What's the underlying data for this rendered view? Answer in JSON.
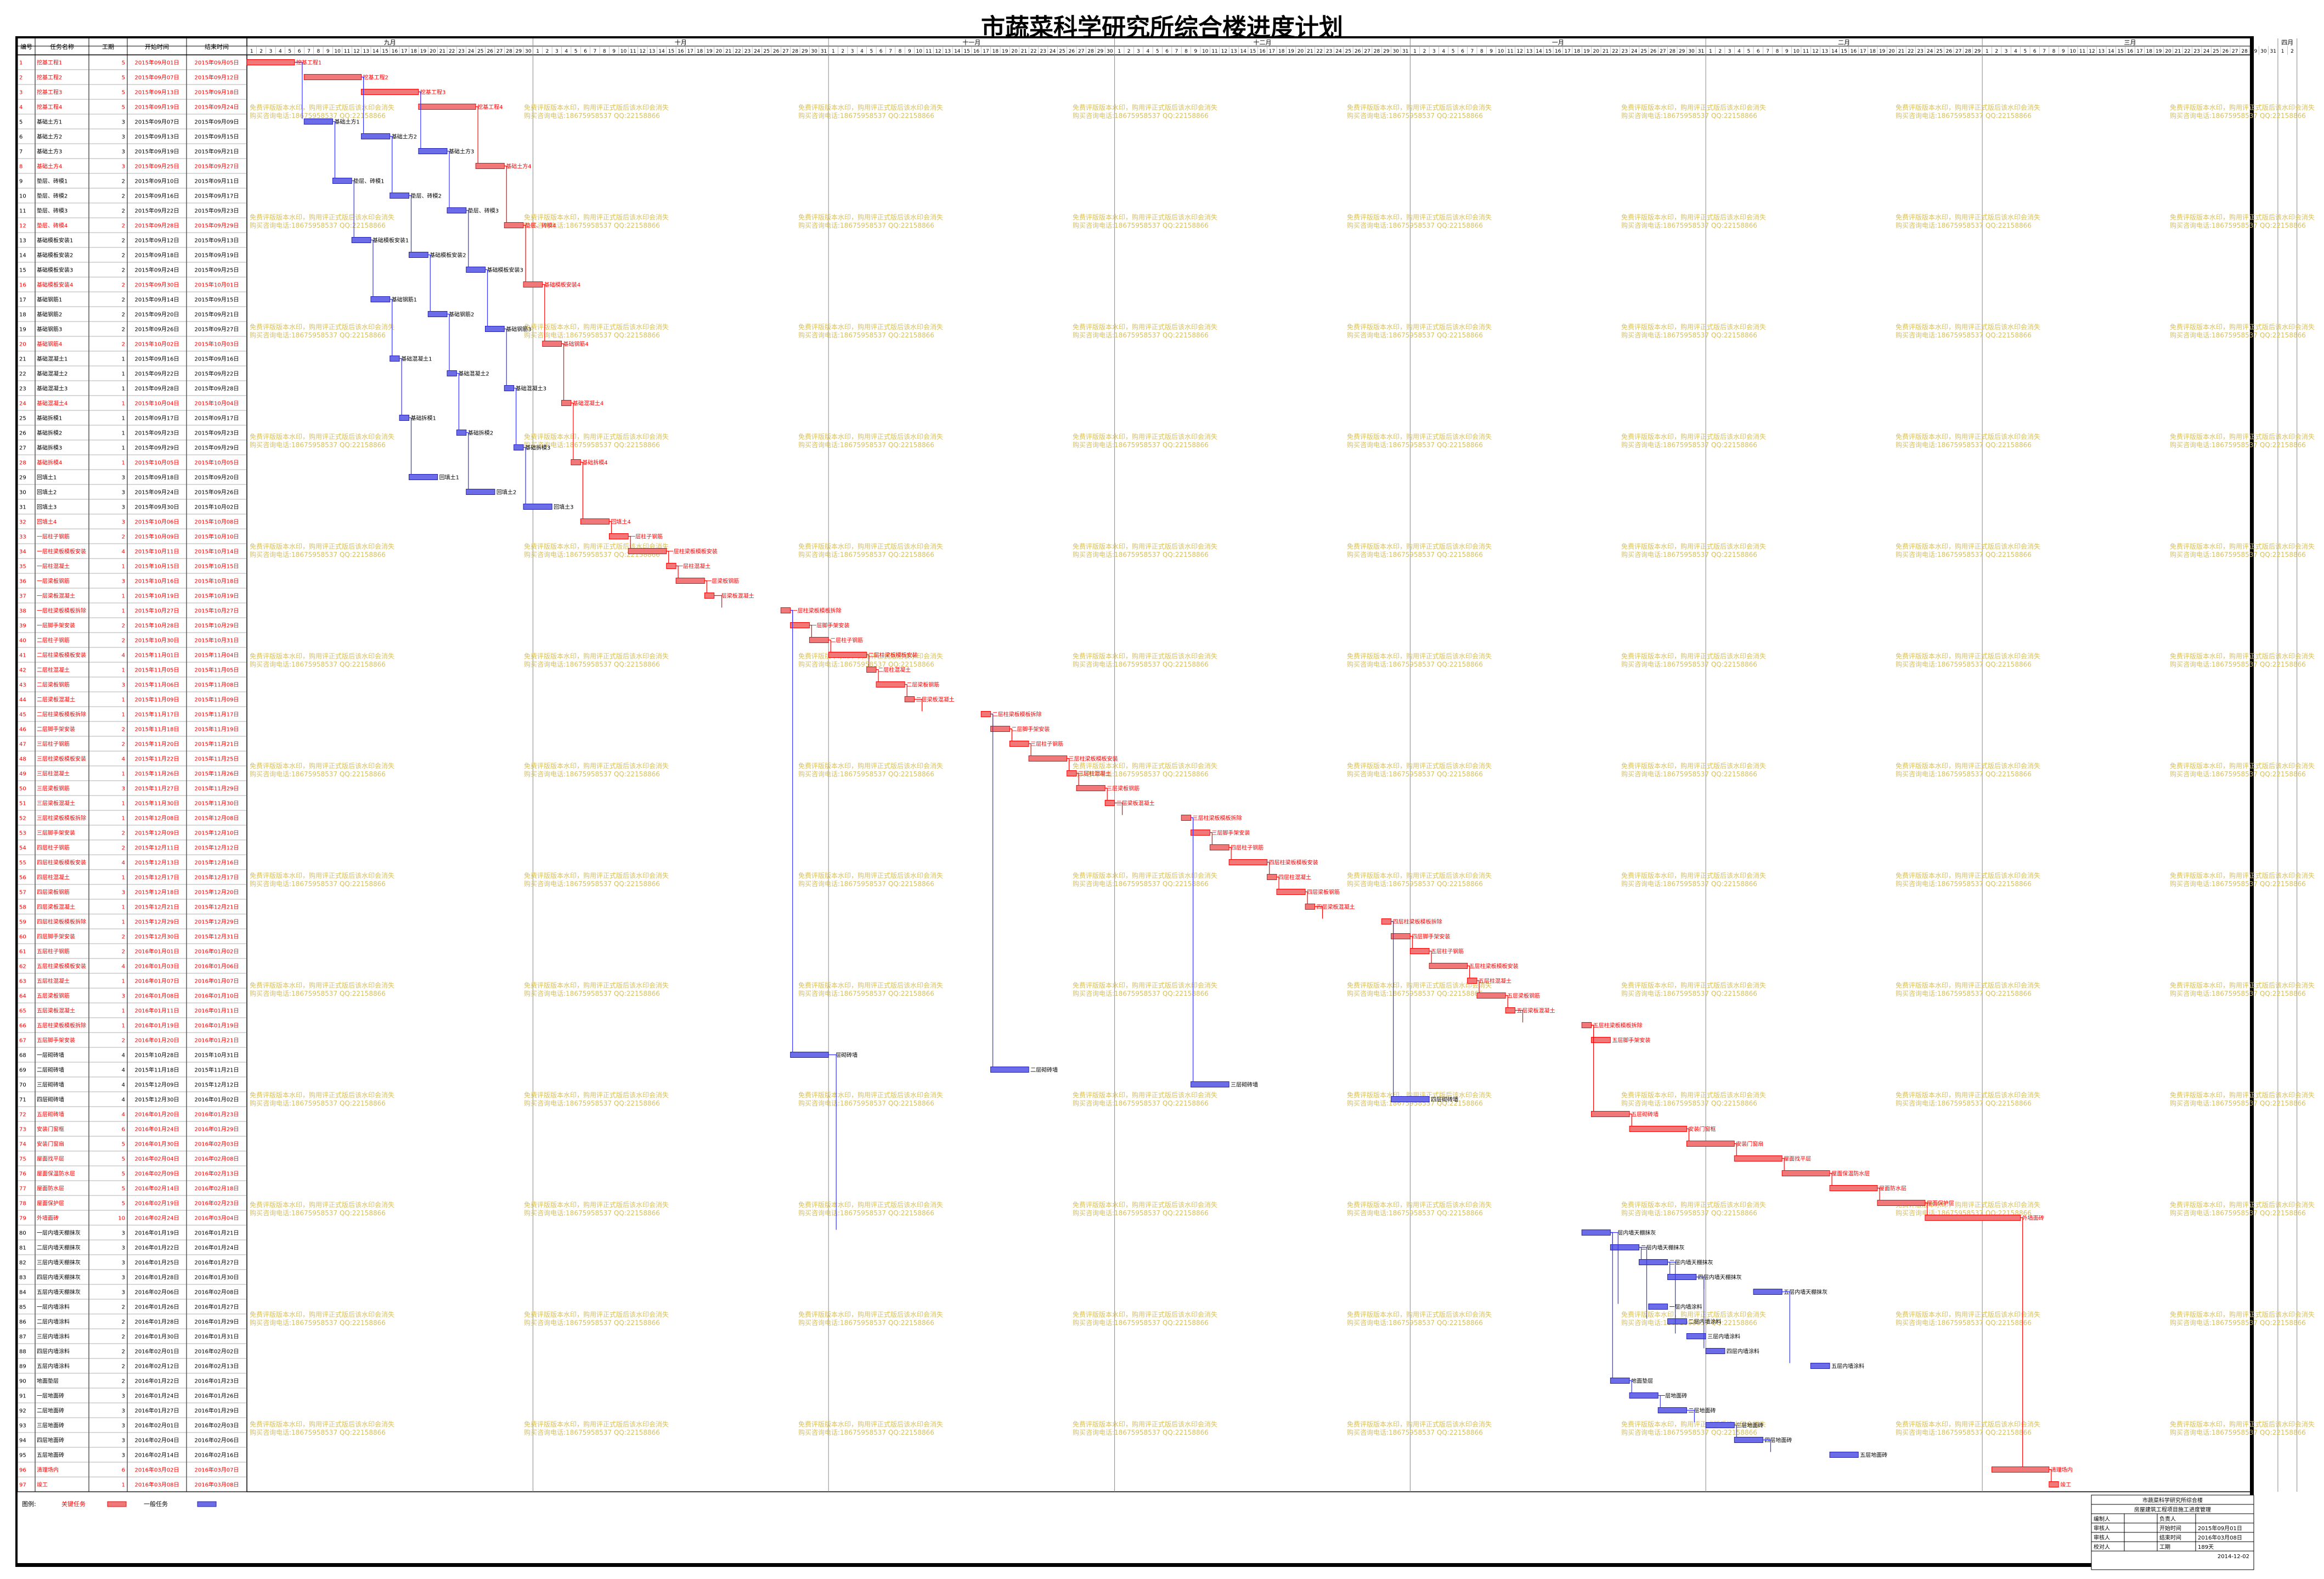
{
  "title": "市蔬菜科学研究所综合楼进度计划",
  "columns": {
    "id": "编号",
    "name": "任务名称",
    "duration": "工期",
    "start": "开始时间",
    "end": "结束时间"
  },
  "colors": {
    "critical": "#ff0000",
    "critical_bar": "#f07878",
    "normal": "#000000",
    "normal_bar": "#6c6ce8",
    "link": "#3030ff",
    "watermark": "#d8c060",
    "grid": "#888888"
  },
  "months": [
    {
      "label": "九月",
      "days": 30
    },
    {
      "label": "十月",
      "days": 31
    },
    {
      "label": "十一月",
      "days": 30
    },
    {
      "label": "十二月",
      "days": 31
    },
    {
      "label": "一月",
      "days": 31
    },
    {
      "label": "二月",
      "days": 29
    },
    {
      "label": "三月",
      "days": 31
    },
    {
      "label": "四月",
      "days": 2
    }
  ],
  "watermark": {
    "line1": "免费评版版本水印，购用评正式版后该水印会消失",
    "line2": "购买咨询电话:18675958537 QQ:22158866"
  },
  "tasks": [
    {
      "id": "1",
      "name": "挖基工程1",
      "dur": "5",
      "start": "2015年09月01日",
      "end": "2015年09月05日",
      "c": true,
      "s": 0,
      "d": 5
    },
    {
      "id": "2",
      "name": "挖基工程2",
      "dur": "5",
      "start": "2015年09月07日",
      "end": "2015年09月12日",
      "c": true,
      "s": 6,
      "d": 6
    },
    {
      "id": "3",
      "name": "挖基工程3",
      "dur": "5",
      "start": "2015年09月13日",
      "end": "2015年09月18日",
      "c": true,
      "s": 12,
      "d": 6
    },
    {
      "id": "4",
      "name": "挖基工程4",
      "dur": "5",
      "start": "2015年09月19日",
      "end": "2015年09月24日",
      "c": true,
      "s": 18,
      "d": 6
    },
    {
      "id": "5",
      "name": "基础土方1",
      "dur": "3",
      "start": "2015年09月07日",
      "end": "2015年09月09日",
      "c": false,
      "s": 6,
      "d": 3
    },
    {
      "id": "6",
      "name": "基础土方2",
      "dur": "3",
      "start": "2015年09月13日",
      "end": "2015年09月15日",
      "c": false,
      "s": 12,
      "d": 3
    },
    {
      "id": "7",
      "name": "基础土方3",
      "dur": "3",
      "start": "2015年09月19日",
      "end": "2015年09月21日",
      "c": false,
      "s": 18,
      "d": 3
    },
    {
      "id": "8",
      "name": "基础土方4",
      "dur": "3",
      "start": "2015年09月25日",
      "end": "2015年09月27日",
      "c": true,
      "s": 24,
      "d": 3
    },
    {
      "id": "9",
      "name": "垫层、砖模1",
      "dur": "2",
      "start": "2015年09月10日",
      "end": "2015年09月11日",
      "c": false,
      "s": 9,
      "d": 2
    },
    {
      "id": "10",
      "name": "垫层、砖模2",
      "dur": "2",
      "start": "2015年09月16日",
      "end": "2015年09月17日",
      "c": false,
      "s": 15,
      "d": 2
    },
    {
      "id": "11",
      "name": "垫层、砖模3",
      "dur": "2",
      "start": "2015年09月22日",
      "end": "2015年09月23日",
      "c": false,
      "s": 21,
      "d": 2
    },
    {
      "id": "12",
      "name": "垫层、砖模4",
      "dur": "2",
      "start": "2015年09月28日",
      "end": "2015年09月29日",
      "c": true,
      "s": 27,
      "d": 2
    },
    {
      "id": "13",
      "name": "基础模板安装1",
      "dur": "2",
      "start": "2015年09月12日",
      "end": "2015年09月13日",
      "c": false,
      "s": 11,
      "d": 2
    },
    {
      "id": "14",
      "name": "基础模板安装2",
      "dur": "2",
      "start": "2015年09月18日",
      "end": "2015年09月19日",
      "c": false,
      "s": 17,
      "d": 2
    },
    {
      "id": "15",
      "name": "基础模板安装3",
      "dur": "2",
      "start": "2015年09月24日",
      "end": "2015年09月25日",
      "c": false,
      "s": 23,
      "d": 2
    },
    {
      "id": "16",
      "name": "基础模板安装4",
      "dur": "2",
      "start": "2015年09月30日",
      "end": "2015年10月01日",
      "c": true,
      "s": 29,
      "d": 2
    },
    {
      "id": "17",
      "name": "基础钢筋1",
      "dur": "2",
      "start": "2015年09月14日",
      "end": "2015年09月15日",
      "c": false,
      "s": 13,
      "d": 2
    },
    {
      "id": "18",
      "name": "基础钢筋2",
      "dur": "2",
      "start": "2015年09月20日",
      "end": "2015年09月21日",
      "c": false,
      "s": 19,
      "d": 2
    },
    {
      "id": "19",
      "name": "基础钢筋3",
      "dur": "2",
      "start": "2015年09月26日",
      "end": "2015年09月27日",
      "c": false,
      "s": 25,
      "d": 2
    },
    {
      "id": "20",
      "name": "基础钢筋4",
      "dur": "2",
      "start": "2015年10月02日",
      "end": "2015年10月03日",
      "c": true,
      "s": 31,
      "d": 2
    },
    {
      "id": "21",
      "name": "基础混凝土1",
      "dur": "1",
      "start": "2015年09月16日",
      "end": "2015年09月16日",
      "c": false,
      "s": 15,
      "d": 1
    },
    {
      "id": "22",
      "name": "基础混凝土2",
      "dur": "1",
      "start": "2015年09月22日",
      "end": "2015年09月22日",
      "c": false,
      "s": 21,
      "d": 1
    },
    {
      "id": "23",
      "name": "基础混凝土3",
      "dur": "1",
      "start": "2015年09月28日",
      "end": "2015年09月28日",
      "c": false,
      "s": 27,
      "d": 1
    },
    {
      "id": "24",
      "name": "基础混凝土4",
      "dur": "1",
      "start": "2015年10月04日",
      "end": "2015年10月04日",
      "c": true,
      "s": 33,
      "d": 1
    },
    {
      "id": "25",
      "name": "基础拆模1",
      "dur": "1",
      "start": "2015年09月17日",
      "end": "2015年09月17日",
      "c": false,
      "s": 16,
      "d": 1
    },
    {
      "id": "26",
      "name": "基础拆模2",
      "dur": "1",
      "start": "2015年09月23日",
      "end": "2015年09月23日",
      "c": false,
      "s": 22,
      "d": 1
    },
    {
      "id": "27",
      "name": "基础拆模3",
      "dur": "1",
      "start": "2015年09月29日",
      "end": "2015年09月29日",
      "c": false,
      "s": 28,
      "d": 1
    },
    {
      "id": "28",
      "name": "基础拆模4",
      "dur": "1",
      "start": "2015年10月05日",
      "end": "2015年10月05日",
      "c": true,
      "s": 34,
      "d": 1
    },
    {
      "id": "29",
      "name": "回填土1",
      "dur": "3",
      "start": "2015年09月18日",
      "end": "2015年09月20日",
      "c": false,
      "s": 17,
      "d": 3
    },
    {
      "id": "30",
      "name": "回填土2",
      "dur": "3",
      "start": "2015年09月24日",
      "end": "2015年09月26日",
      "c": false,
      "s": 23,
      "d": 3
    },
    {
      "id": "31",
      "name": "回填土3",
      "dur": "3",
      "start": "2015年09月30日",
      "end": "2015年10月02日",
      "c": false,
      "s": 29,
      "d": 3
    },
    {
      "id": "32",
      "name": "回填土4",
      "dur": "3",
      "start": "2015年10月06日",
      "end": "2015年10月08日",
      "c": true,
      "s": 35,
      "d": 3
    },
    {
      "id": "33",
      "name": "一层柱子钢筋",
      "dur": "2",
      "start": "2015年10月09日",
      "end": "2015年10月10日",
      "c": true,
      "s": 38,
      "d": 2
    },
    {
      "id": "34",
      "name": "一层柱梁板模板安装",
      "dur": "4",
      "start": "2015年10月11日",
      "end": "2015年10月14日",
      "c": true,
      "s": 40,
      "d": 4
    },
    {
      "id": "35",
      "name": "一层柱混凝土",
      "dur": "1",
      "start": "2015年10月15日",
      "end": "2015年10月15日",
      "c": true,
      "s": 44,
      "d": 1
    },
    {
      "id": "36",
      "name": "一层梁板钢筋",
      "dur": "3",
      "start": "2015年10月16日",
      "end": "2015年10月18日",
      "c": true,
      "s": 45,
      "d": 3
    },
    {
      "id": "37",
      "name": "一层梁板混凝土",
      "dur": "1",
      "start": "2015年10月19日",
      "end": "2015年10月19日",
      "c": true,
      "s": 48,
      "d": 1
    },
    {
      "id": "38",
      "name": "一层柱梁板模板拆除",
      "dur": "1",
      "start": "2015年10月27日",
      "end": "2015年10月27日",
      "c": true,
      "s": 56,
      "d": 1
    },
    {
      "id": "39",
      "name": "一层脚手架安装",
      "dur": "2",
      "start": "2015年10月28日",
      "end": "2015年10月29日",
      "c": true,
      "s": 57,
      "d": 2
    },
    {
      "id": "40",
      "name": "二层柱子钢筋",
      "dur": "2",
      "start": "2015年10月30日",
      "end": "2015年10月31日",
      "c": true,
      "s": 59,
      "d": 2
    },
    {
      "id": "41",
      "name": "二层柱梁板模板安装",
      "dur": "4",
      "start": "2015年11月01日",
      "end": "2015年11月04日",
      "c": true,
      "s": 61,
      "d": 4
    },
    {
      "id": "42",
      "name": "二层柱混凝土",
      "dur": "1",
      "start": "2015年11月05日",
      "end": "2015年11月05日",
      "c": true,
      "s": 65,
      "d": 1
    },
    {
      "id": "43",
      "name": "二层梁板钢筋",
      "dur": "3",
      "start": "2015年11月06日",
      "end": "2015年11月08日",
      "c": true,
      "s": 66,
      "d": 3
    },
    {
      "id": "44",
      "name": "二层梁板混凝土",
      "dur": "1",
      "start": "2015年11月09日",
      "end": "2015年11月09日",
      "c": true,
      "s": 69,
      "d": 1
    },
    {
      "id": "45",
      "name": "二层柱梁板模板拆除",
      "dur": "1",
      "start": "2015年11月17日",
      "end": "2015年11月17日",
      "c": true,
      "s": 77,
      "d": 1
    },
    {
      "id": "46",
      "name": "二层脚手架安装",
      "dur": "2",
      "start": "2015年11月18日",
      "end": "2015年11月19日",
      "c": true,
      "s": 78,
      "d": 2
    },
    {
      "id": "47",
      "name": "三层柱子钢筋",
      "dur": "2",
      "start": "2015年11月20日",
      "end": "2015年11月21日",
      "c": true,
      "s": 80,
      "d": 2
    },
    {
      "id": "48",
      "name": "三层柱梁板模板安装",
      "dur": "4",
      "start": "2015年11月22日",
      "end": "2015年11月25日",
      "c": true,
      "s": 82,
      "d": 4
    },
    {
      "id": "49",
      "name": "三层柱混凝土",
      "dur": "1",
      "start": "2015年11月26日",
      "end": "2015年11月26日",
      "c": true,
      "s": 86,
      "d": 1
    },
    {
      "id": "50",
      "name": "三层梁板钢筋",
      "dur": "3",
      "start": "2015年11月27日",
      "end": "2015年11月29日",
      "c": true,
      "s": 87,
      "d": 3
    },
    {
      "id": "51",
      "name": "三层梁板混凝土",
      "dur": "1",
      "start": "2015年11月30日",
      "end": "2015年11月30日",
      "c": true,
      "s": 90,
      "d": 1
    },
    {
      "id": "52",
      "name": "三层柱梁板模板拆除",
      "dur": "1",
      "start": "2015年12月08日",
      "end": "2015年12月08日",
      "c": true,
      "s": 98,
      "d": 1
    },
    {
      "id": "53",
      "name": "三层脚手架安装",
      "dur": "2",
      "start": "2015年12月09日",
      "end": "2015年12月10日",
      "c": true,
      "s": 99,
      "d": 2
    },
    {
      "id": "54",
      "name": "四层柱子钢筋",
      "dur": "2",
      "start": "2015年12月11日",
      "end": "2015年12月12日",
      "c": true,
      "s": 101,
      "d": 2
    },
    {
      "id": "55",
      "name": "四层柱梁板模板安装",
      "dur": "4",
      "start": "2015年12月13日",
      "end": "2015年12月16日",
      "c": true,
      "s": 103,
      "d": 4
    },
    {
      "id": "56",
      "name": "四层柱混凝土",
      "dur": "1",
      "start": "2015年12月17日",
      "end": "2015年12月17日",
      "c": true,
      "s": 107,
      "d": 1
    },
    {
      "id": "57",
      "name": "四层梁板钢筋",
      "dur": "3",
      "start": "2015年12月18日",
      "end": "2015年12月20日",
      "c": true,
      "s": 108,
      "d": 3
    },
    {
      "id": "58",
      "name": "四层梁板混凝土",
      "dur": "1",
      "start": "2015年12月21日",
      "end": "2015年12月21日",
      "c": true,
      "s": 111,
      "d": 1
    },
    {
      "id": "59",
      "name": "四层柱梁板模板拆除",
      "dur": "1",
      "start": "2015年12月29日",
      "end": "2015年12月29日",
      "c": true,
      "s": 119,
      "d": 1
    },
    {
      "id": "60",
      "name": "四层脚手架安装",
      "dur": "2",
      "start": "2015年12月30日",
      "end": "2015年12月31日",
      "c": true,
      "s": 120,
      "d": 2
    },
    {
      "id": "61",
      "name": "五层柱子钢筋",
      "dur": "2",
      "start": "2016年01月01日",
      "end": "2016年01月02日",
      "c": true,
      "s": 122,
      "d": 2
    },
    {
      "id": "62",
      "name": "五层柱梁板模板安装",
      "dur": "4",
      "start": "2016年01月03日",
      "end": "2016年01月06日",
      "c": true,
      "s": 124,
      "d": 4
    },
    {
      "id": "63",
      "name": "五层柱混凝土",
      "dur": "1",
      "start": "2016年01月07日",
      "end": "2016年01月07日",
      "c": true,
      "s": 128,
      "d": 1
    },
    {
      "id": "64",
      "name": "五层梁板钢筋",
      "dur": "3",
      "start": "2016年01月08日",
      "end": "2016年01月10日",
      "c": true,
      "s": 129,
      "d": 3
    },
    {
      "id": "65",
      "name": "五层梁板混凝土",
      "dur": "1",
      "start": "2016年01月11日",
      "end": "2016年01月11日",
      "c": true,
      "s": 132,
      "d": 1
    },
    {
      "id": "66",
      "name": "五层柱梁板模板拆除",
      "dur": "1",
      "start": "2016年01月19日",
      "end": "2016年01月19日",
      "c": true,
      "s": 140,
      "d": 1
    },
    {
      "id": "67",
      "name": "五层脚手架安装",
      "dur": "2",
      "start": "2016年01月20日",
      "end": "2016年01月21日",
      "c": true,
      "s": 141,
      "d": 2
    },
    {
      "id": "68",
      "name": "一层砌砖墙",
      "dur": "4",
      "start": "2015年10月28日",
      "end": "2015年10月31日",
      "c": false,
      "s": 57,
      "d": 4
    },
    {
      "id": "69",
      "name": "二层砌砖墙",
      "dur": "4",
      "start": "2015年11月18日",
      "end": "2015年11月21日",
      "c": false,
      "s": 78,
      "d": 4
    },
    {
      "id": "70",
      "name": "三层砌砖墙",
      "dur": "4",
      "start": "2015年12月09日",
      "end": "2015年12月12日",
      "c": false,
      "s": 99,
      "d": 4
    },
    {
      "id": "71",
      "name": "四层砌砖墙",
      "dur": "4",
      "start": "2015年12月30日",
      "end": "2016年01月02日",
      "c": false,
      "s": 120,
      "d": 4
    },
    {
      "id": "72",
      "name": "五层砌砖墙",
      "dur": "4",
      "start": "2016年01月20日",
      "end": "2016年01月23日",
      "c": true,
      "s": 141,
      "d": 4
    },
    {
      "id": "73",
      "name": "安装门窗框",
      "dur": "6",
      "start": "2016年01月24日",
      "end": "2016年01月29日",
      "c": true,
      "s": 145,
      "d": 6
    },
    {
      "id": "74",
      "name": "安装门窗扇",
      "dur": "5",
      "start": "2016年01月30日",
      "end": "2016年02月03日",
      "c": true,
      "s": 151,
      "d": 5
    },
    {
      "id": "75",
      "name": "屋面找平层",
      "dur": "5",
      "start": "2016年02月04日",
      "end": "2016年02月08日",
      "c": true,
      "s": 156,
      "d": 5
    },
    {
      "id": "76",
      "name": "屋面保温防水层",
      "dur": "5",
      "start": "2016年02月09日",
      "end": "2016年02月13日",
      "c": true,
      "s": 161,
      "d": 5
    },
    {
      "id": "77",
      "name": "屋面防水层",
      "dur": "5",
      "start": "2016年02月14日",
      "end": "2016年02月18日",
      "c": true,
      "s": 166,
      "d": 5
    },
    {
      "id": "78",
      "name": "屋面保护层",
      "dur": "5",
      "start": "2016年02月19日",
      "end": "2016年02月23日",
      "c": true,
      "s": 171,
      "d": 5
    },
    {
      "id": "79",
      "name": "外墙面砖",
      "dur": "10",
      "start": "2016年02月24日",
      "end": "2016年03月04日",
      "c": true,
      "s": 176,
      "d": 10
    },
    {
      "id": "80",
      "name": "一层内墙天棚抹灰",
      "dur": "3",
      "start": "2016年01月19日",
      "end": "2016年01月21日",
      "c": false,
      "s": 140,
      "d": 3
    },
    {
      "id": "81",
      "name": "二层内墙天棚抹灰",
      "dur": "3",
      "start": "2016年01月22日",
      "end": "2016年01月24日",
      "c": false,
      "s": 143,
      "d": 3
    },
    {
      "id": "82",
      "name": "三层内墙天棚抹灰",
      "dur": "3",
      "start": "2016年01月25日",
      "end": "2016年01月27日",
      "c": false,
      "s": 146,
      "d": 3
    },
    {
      "id": "83",
      "name": "四层内墙天棚抹灰",
      "dur": "3",
      "start": "2016年01月28日",
      "end": "2016年01月30日",
      "c": false,
      "s": 149,
      "d": 3
    },
    {
      "id": "84",
      "name": "五层内墙天棚抹灰",
      "dur": "3",
      "start": "2016年02月06日",
      "end": "2016年02月08日",
      "c": false,
      "s": 158,
      "d": 3
    },
    {
      "id": "85",
      "name": "一层内墙涂料",
      "dur": "2",
      "start": "2016年01月26日",
      "end": "2016年01月27日",
      "c": false,
      "s": 147,
      "d": 2
    },
    {
      "id": "86",
      "name": "二层内墙涂料",
      "dur": "2",
      "start": "2016年01月28日",
      "end": "2016年01月29日",
      "c": false,
      "s": 149,
      "d": 2
    },
    {
      "id": "87",
      "name": "三层内墙涂料",
      "dur": "2",
      "start": "2016年01月30日",
      "end": "2016年01月31日",
      "c": false,
      "s": 151,
      "d": 2
    },
    {
      "id": "88",
      "name": "四层内墙涂料",
      "dur": "2",
      "start": "2016年02月01日",
      "end": "2016年02月02日",
      "c": false,
      "s": 153,
      "d": 2
    },
    {
      "id": "89",
      "name": "五层内墙涂料",
      "dur": "2",
      "start": "2016年02月12日",
      "end": "2016年02月13日",
      "c": false,
      "s": 164,
      "d": 2
    },
    {
      "id": "90",
      "name": "地面垫层",
      "dur": "2",
      "start": "2016年01月22日",
      "end": "2016年01月23日",
      "c": false,
      "s": 143,
      "d": 2
    },
    {
      "id": "91",
      "name": "一层地面砖",
      "dur": "3",
      "start": "2016年01月24日",
      "end": "2016年01月26日",
      "c": false,
      "s": 145,
      "d": 3
    },
    {
      "id": "92",
      "name": "二层地面砖",
      "dur": "3",
      "start": "2016年01月27日",
      "end": "2016年01月29日",
      "c": false,
      "s": 148,
      "d": 3
    },
    {
      "id": "93",
      "name": "三层地面砖",
      "dur": "3",
      "start": "2016年02月01日",
      "end": "2016年02月03日",
      "c": false,
      "s": 153,
      "d": 3
    },
    {
      "id": "94",
      "name": "四层地面砖",
      "dur": "3",
      "start": "2016年02月04日",
      "end": "2016年02月06日",
      "c": false,
      "s": 156,
      "d": 3
    },
    {
      "id": "95",
      "name": "五层地面砖",
      "dur": "3",
      "start": "2016年02月14日",
      "end": "2016年02月16日",
      "c": false,
      "s": 166,
      "d": 3
    },
    {
      "id": "96",
      "name": "清理场内",
      "dur": "6",
      "start": "2016年03月02日",
      "end": "2016年03月07日",
      "c": true,
      "s": 183,
      "d": 6
    },
    {
      "id": "97",
      "name": "竣工",
      "dur": "1",
      "start": "2016年03月08日",
      "end": "2016年03月08日",
      "c": true,
      "s": 189,
      "d": 1
    }
  ],
  "legend": {
    "label": "图例:",
    "critical": "关键任务",
    "normal": "一般任务"
  },
  "info": {
    "project": "市蔬菜科学研究所综合楼",
    "subtitle": "房屋建筑工程项目施工进度管理",
    "rows": [
      [
        "编制人",
        "",
        "负责人",
        ""
      ],
      [
        "审核人",
        "",
        "开始时间",
        "2015年09月01日"
      ],
      [
        "审核人",
        "",
        "结束时间",
        "2016年03月08日"
      ],
      [
        "校对人",
        "",
        "工期",
        "189天"
      ]
    ],
    "date": "2014-12-02"
  }
}
